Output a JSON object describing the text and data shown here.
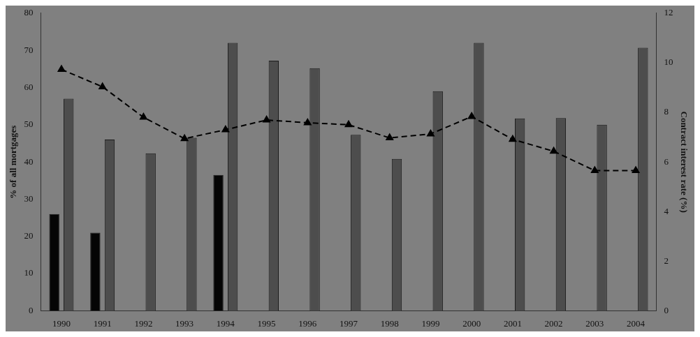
{
  "chart_data": {
    "type": "bar",
    "ylabel": "% of all mortgages",
    "y2label": "Contract interest rate (%)",
    "categories": [
      "1990",
      "1991",
      "1992",
      "1993",
      "1994",
      "1995",
      "1996",
      "1997",
      "1998",
      "1999",
      "2000",
      "2001",
      "2002",
      "2003",
      "2004"
    ],
    "series": [
      {
        "color": "#050505",
        "values": [
          26,
          21,
          null,
          null,
          36.5,
          null,
          null,
          null,
          null,
          null,
          null,
          null,
          null,
          null,
          null
        ]
      },
      {
        "color": "#4d4d4d",
        "values": [
          57,
          46,
          42.3,
          46.5,
          72,
          67.2,
          65.2,
          47.3,
          40.8,
          59,
          72,
          51.7,
          51.8,
          50,
          70.7
        ]
      },
      {
        "type": "line",
        "axis": "y2",
        "color": "#000000",
        "marker": "triangle",
        "line_style": "dashed",
        "values": [
          9.73,
          9.03,
          7.8,
          6.94,
          7.3,
          7.69,
          7.58,
          7.5,
          6.97,
          7.13,
          7.83,
          6.91,
          6.43,
          5.65,
          5.65
        ]
      }
    ],
    "ylim": [
      0,
      80
    ],
    "yticks": [
      0,
      10,
      20,
      30,
      40,
      50,
      60,
      70,
      80
    ],
    "y2lim": [
      0,
      12
    ],
    "y2ticks": [
      0,
      2,
      4,
      6,
      8,
      10,
      12
    ],
    "grid": false,
    "legend": false
  }
}
